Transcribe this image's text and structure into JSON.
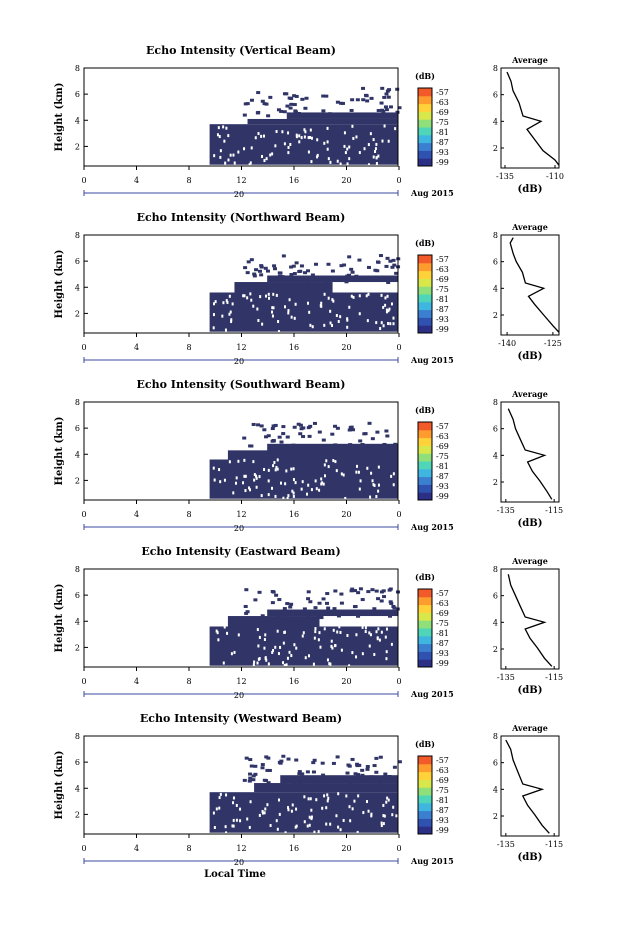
{
  "figure": {
    "colorbar_unit": "(dB)",
    "colorbar_ticks": [
      "-57",
      "-63",
      "-69",
      "-75",
      "-81",
      "-87",
      "-93",
      "-99"
    ],
    "date_label": "Aug 2015",
    "day_label": "20",
    "x_ticks": [
      "0",
      "4",
      "8",
      "12",
      "16",
      "20",
      "0"
    ],
    "y_ticks": [
      "2",
      "4",
      "6",
      "8"
    ],
    "ylabel": "Height (km)",
    "xlabel": "Local Time",
    "average_title": "Average",
    "average_xlabel": "(dB)",
    "colorbar_colors": [
      "#2b2f86",
      "#2f52b0",
      "#3b7fd0",
      "#3fb6e0",
      "#4fd6b8",
      "#8fe07a",
      "#d8e84a",
      "#ffd23a",
      "#ff9c2e",
      "#f25a2a"
    ]
  },
  "chart_data": [
    {
      "type": "heatmap",
      "title": "Echo Intensity (Vertical Beam)",
      "xlabel": "",
      "ylabel": "Height (km)",
      "xlim": [
        0,
        24
      ],
      "ylim": [
        0.5,
        8
      ],
      "series": [
        {
          "values": [
            {
              "x_from": 9.6,
              "x_to": 24,
              "y_from": 0.6,
              "y_to": 3.7
            },
            {
              "x_from": 12.5,
              "x_to": 24,
              "y_from": 3.7,
              "y_to": 4.1
            },
            {
              "x_from": 15.5,
              "x_to": 24,
              "y_from": 4.1,
              "y_to": 4.6
            }
          ]
        }
      ],
      "average": {
        "xlabel": "(dB)",
        "xticks": [
          "-135",
          "-110"
        ],
        "yticks": [
          "2",
          "4",
          "6",
          "8"
        ],
        "profile": [
          [
            -108,
            0.7
          ],
          [
            -110,
            1.1
          ],
          [
            -116,
            1.8
          ],
          [
            -120,
            2.6
          ],
          [
            -124,
            3.4
          ],
          [
            -117,
            4.0
          ],
          [
            -126,
            4.4
          ],
          [
            -128,
            5.4
          ],
          [
            -131,
            6.3
          ],
          [
            -132,
            7.0
          ],
          [
            -134,
            7.7
          ]
        ]
      }
    },
    {
      "type": "heatmap",
      "title": "Echo Intensity (Northward Beam)",
      "xlabel": "",
      "ylabel": "Height (km)",
      "xlim": [
        0,
        24
      ],
      "ylim": [
        0.5,
        8
      ],
      "series": [
        {
          "values": [
            {
              "x_from": 9.6,
              "x_to": 24,
              "y_from": 0.6,
              "y_to": 3.6
            },
            {
              "x_from": 11.5,
              "x_to": 19,
              "y_from": 3.6,
              "y_to": 4.4
            },
            {
              "x_from": 14,
              "x_to": 24,
              "y_from": 4.4,
              "y_to": 4.9
            }
          ]
        }
      ],
      "average": {
        "xlabel": "(dB)",
        "xticks": [
          "-140",
          "-125"
        ],
        "yticks": [
          "2",
          "4",
          "6",
          "8"
        ],
        "profile": [
          [
            -123,
            0.7
          ],
          [
            -125,
            1.2
          ],
          [
            -128,
            2.0
          ],
          [
            -131,
            2.8
          ],
          [
            -133,
            3.4
          ],
          [
            -128,
            4.0
          ],
          [
            -134,
            4.4
          ],
          [
            -135,
            5.2
          ],
          [
            -137,
            6.0
          ],
          [
            -138,
            6.6
          ],
          [
            -139,
            7.4
          ],
          [
            -138,
            7.8
          ]
        ]
      }
    },
    {
      "type": "heatmap",
      "title": "Echo Intensity (Southward Beam)",
      "xlabel": "",
      "ylabel": "Height (km)",
      "xlim": [
        0,
        24
      ],
      "ylim": [
        0.5,
        8
      ],
      "series": [
        {
          "values": [
            {
              "x_from": 9.6,
              "x_to": 24,
              "y_from": 0.6,
              "y_to": 3.6
            },
            {
              "x_from": 11,
              "x_to": 18,
              "y_from": 3.6,
              "y_to": 4.3
            },
            {
              "x_from": 14,
              "x_to": 24,
              "y_from": 3.6,
              "y_to": 4.8
            }
          ]
        }
      ],
      "average": {
        "xlabel": "(dB)",
        "xticks": [
          "-135",
          "-115"
        ],
        "yticks": [
          "2",
          "4",
          "6",
          "8"
        ],
        "profile": [
          [
            -116,
            0.7
          ],
          [
            -118,
            1.3
          ],
          [
            -121,
            2.1
          ],
          [
            -124,
            2.8
          ],
          [
            -126,
            3.5
          ],
          [
            -119,
            4.0
          ],
          [
            -127,
            4.4
          ],
          [
            -129,
            5.2
          ],
          [
            -131,
            6.0
          ],
          [
            -132,
            6.7
          ],
          [
            -134,
            7.5
          ]
        ]
      }
    },
    {
      "type": "heatmap",
      "title": "Echo Intensity (Eastward Beam)",
      "xlabel": "",
      "ylabel": "Height (km)",
      "xlim": [
        0,
        24
      ],
      "ylim": [
        0.5,
        8
      ],
      "series": [
        {
          "values": [
            {
              "x_from": 9.6,
              "x_to": 24,
              "y_from": 0.6,
              "y_to": 3.6
            },
            {
              "x_from": 11,
              "x_to": 18,
              "y_from": 3.6,
              "y_to": 4.4
            },
            {
              "x_from": 14,
              "x_to": 24,
              "y_from": 4.4,
              "y_to": 4.9
            }
          ]
        }
      ],
      "average": {
        "xlabel": "(dB)",
        "xticks": [
          "-135",
          "-115"
        ],
        "yticks": [
          "2",
          "4",
          "6",
          "8"
        ],
        "profile": [
          [
            -116,
            0.7
          ],
          [
            -119,
            1.3
          ],
          [
            -122,
            2.1
          ],
          [
            -125,
            2.8
          ],
          [
            -127,
            3.5
          ],
          [
            -119,
            4.0
          ],
          [
            -127,
            4.4
          ],
          [
            -129,
            5.2
          ],
          [
            -131,
            6.0
          ],
          [
            -133,
            6.8
          ],
          [
            -134,
            7.6
          ]
        ]
      }
    },
    {
      "type": "heatmap",
      "title": "Echo Intensity (Westward Beam)",
      "xlabel": "Local Time",
      "ylabel": "Height (km)",
      "xlim": [
        0,
        24
      ],
      "ylim": [
        0.5,
        8
      ],
      "series": [
        {
          "values": [
            {
              "x_from": 9.6,
              "x_to": 24,
              "y_from": 0.6,
              "y_to": 3.7
            },
            {
              "x_from": 13,
              "x_to": 24,
              "y_from": 3.7,
              "y_to": 4.4
            },
            {
              "x_from": 15,
              "x_to": 24,
              "y_from": 4.4,
              "y_to": 5.0
            }
          ]
        }
      ],
      "average": {
        "xlabel": "(dB)",
        "xticks": [
          "-135",
          "-115"
        ],
        "yticks": [
          "2",
          "4",
          "6",
          "8"
        ],
        "profile": [
          [
            -117,
            0.7
          ],
          [
            -120,
            1.3
          ],
          [
            -123,
            2.1
          ],
          [
            -126,
            2.8
          ],
          [
            -128,
            3.5
          ],
          [
            -120,
            4.0
          ],
          [
            -128,
            4.4
          ],
          [
            -130,
            5.3
          ],
          [
            -132,
            6.2
          ],
          [
            -133,
            7.0
          ],
          [
            -135,
            7.7
          ]
        ]
      }
    }
  ]
}
